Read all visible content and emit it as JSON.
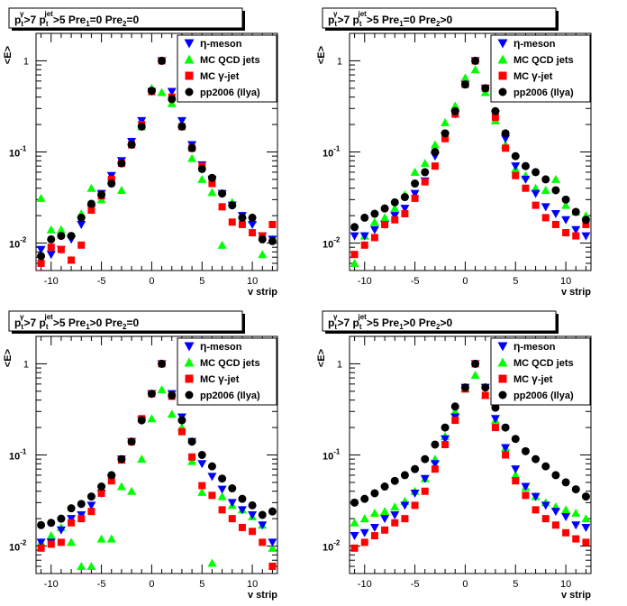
{
  "labels": {
    "eta_letter": "η",
    "gamma_letter": "γ",
    "exp_ten": "10",
    "exp_m1": "-1",
    "exp_m2": "-2",
    "one": "1"
  },
  "chart_data": [
    {
      "type": "scatter",
      "title_parts": {
        "p": "p",
        "sub_t": "t",
        "sup_gamma": "γ",
        "gt7": ">7",
        "p2": "p",
        "sub_t2": "t",
        "sup_jet": "jet",
        "gt5": ">5",
        "pre1": "Pre",
        "sub1": "1",
        "pre1_cond": "=0",
        "pre2": "Pre",
        "sub2": "2",
        "pre2_cond": "=0"
      },
      "xlabel": "v strip",
      "ylabel": "<E>",
      "xlim": [
        -11.5,
        12.5
      ],
      "ylim": [
        0.005,
        2
      ],
      "yscale": "log",
      "xticks": [
        -10,
        -5,
        0,
        5,
        10
      ],
      "legend_placement": "top-right",
      "series": [
        {
          "name": "η-meson",
          "marker": "triangle-down",
          "color": "#0000ff",
          "x": [
            -11,
            -10,
            -9,
            -8,
            -7,
            -6,
            -5,
            -4,
            -3,
            -2,
            -1,
            0,
            1,
            2,
            3,
            4,
            5,
            6,
            7,
            8,
            9,
            10,
            11,
            12
          ],
          "y": [
            0.0085,
            0.0075,
            0.0085,
            0.011,
            0.016,
            0.024,
            0.035,
            0.055,
            0.08,
            0.13,
            0.22,
            0.46,
            1.0,
            0.46,
            0.22,
            0.12,
            0.072,
            0.05,
            0.035,
            0.026,
            0.02,
            0.016,
            0.012,
            0.011
          ]
        },
        {
          "name": "MC QCD jets",
          "marker": "triangle-up",
          "color": "#00ff00",
          "x": [
            -11,
            -10,
            -9,
            -8,
            -7,
            -6,
            -5,
            -4,
            -3,
            -2,
            -1,
            0,
            1,
            2,
            3,
            4,
            5,
            6,
            7,
            8,
            9,
            10,
            11,
            12
          ],
          "y": [
            0.031,
            0.014,
            0.014,
            0.0065,
            0.021,
            0.04,
            0.03,
            0.054,
            0.038,
            0.13,
            0.19,
            0.5,
            0.45,
            0.34,
            0.2,
            0.085,
            0.05,
            0.036,
            0.0095,
            0.028,
            0.02,
            0.018,
            0.0075,
            0.011
          ]
        },
        {
          "name": "MC γ-jet",
          "marker": "square",
          "color": "#ff0000",
          "x": [
            -11,
            -10,
            -9,
            -8,
            -7,
            -6,
            -5,
            -4,
            -3,
            -2,
            -1,
            0,
            1,
            2,
            3,
            4,
            5,
            6,
            7,
            8,
            9,
            10,
            11,
            12
          ],
          "y": [
            0.006,
            0.009,
            0.0085,
            0.0065,
            0.0095,
            0.023,
            0.033,
            0.05,
            0.075,
            0.12,
            0.2,
            0.46,
            1.0,
            0.4,
            0.19,
            0.11,
            0.07,
            0.045,
            0.025,
            0.017,
            0.016,
            0.013,
            0.012,
            0.016
          ]
        },
        {
          "name": "pp2006 (Ilya)",
          "marker": "circle",
          "color": "#000000",
          "x": [
            -11,
            -10,
            -9,
            -8,
            -7,
            -6,
            -5,
            -4,
            -3,
            -2,
            -1,
            0,
            1,
            2,
            3,
            4,
            5,
            6,
            7,
            8,
            9,
            10,
            11,
            12
          ],
          "y": [
            0.0072,
            0.011,
            0.012,
            0.012,
            0.019,
            0.027,
            0.034,
            0.045,
            0.075,
            0.12,
            0.19,
            0.47,
            1.0,
            0.38,
            0.19,
            0.11,
            0.065,
            0.052,
            0.035,
            0.026,
            0.019,
            0.019,
            0.011,
            0.0105
          ]
        }
      ]
    },
    {
      "type": "scatter",
      "title_parts": {
        "p": "p",
        "sub_t": "t",
        "sup_gamma": "γ",
        "gt7": ">7",
        "p2": "p",
        "sub_t2": "t",
        "sup_jet": "jet",
        "gt5": ">5",
        "pre1": "Pre",
        "sub1": "1",
        "pre1_cond": "=0",
        "pre2": "Pre",
        "sub2": "2",
        "pre2_cond": ">0"
      },
      "xlabel": "v strip",
      "ylabel": "<E>",
      "xlim": [
        -11.5,
        12.5
      ],
      "ylim": [
        0.005,
        2
      ],
      "yscale": "log",
      "xticks": [
        -10,
        -5,
        0,
        5,
        10
      ],
      "legend_placement": "top-right",
      "series": [
        {
          "name": "η-meson",
          "marker": "triangle-down",
          "color": "#0000ff",
          "x": [
            -11,
            -10,
            -9,
            -8,
            -7,
            -6,
            -5,
            -4,
            -3,
            -2,
            -1,
            0,
            1,
            2,
            3,
            4,
            5,
            6,
            7,
            8,
            9,
            10,
            11,
            12
          ],
          "y": [
            0.012,
            0.012,
            0.014,
            0.016,
            0.02,
            0.024,
            0.035,
            0.048,
            0.09,
            0.15,
            0.26,
            0.55,
            1.0,
            0.5,
            0.26,
            0.14,
            0.07,
            0.05,
            0.035,
            0.025,
            0.021,
            0.018,
            0.014,
            0.012
          ]
        },
        {
          "name": "MC QCD jets",
          "marker": "triangle-up",
          "color": "#00ff00",
          "x": [
            -11,
            -10,
            -9,
            -8,
            -7,
            -6,
            -5,
            -4,
            -3,
            -2,
            -1,
            0,
            1,
            2,
            3,
            4,
            5,
            6,
            7,
            8,
            9,
            10,
            11,
            12
          ],
          "y": [
            0.006,
            0.012,
            0.017,
            0.019,
            0.024,
            0.034,
            0.06,
            0.075,
            0.12,
            0.21,
            0.32,
            0.65,
            0.8,
            0.45,
            0.22,
            0.12,
            0.065,
            0.055,
            0.04,
            0.038,
            0.05,
            0.026,
            0.022,
            0.02
          ]
        },
        {
          "name": "MC γ-jet",
          "marker": "square",
          "color": "#ff0000",
          "x": [
            -11,
            -10,
            -9,
            -8,
            -7,
            -6,
            -5,
            -4,
            -3,
            -2,
            -1,
            0,
            1,
            2,
            3,
            4,
            5,
            6,
            7,
            8,
            9,
            10,
            11,
            12
          ],
          "y": [
            0.0075,
            0.0095,
            0.0115,
            0.016,
            0.018,
            0.021,
            0.031,
            0.047,
            0.07,
            0.14,
            0.26,
            0.55,
            1.0,
            0.5,
            0.24,
            0.11,
            0.055,
            0.04,
            0.026,
            0.019,
            0.016,
            0.013,
            0.012,
            0.016
          ]
        },
        {
          "name": "pp2006 (Ilya)",
          "marker": "circle",
          "color": "#000000",
          "x": [
            -11,
            -10,
            -9,
            -8,
            -7,
            -6,
            -5,
            -4,
            -3,
            -2,
            -1,
            0,
            1,
            2,
            3,
            4,
            5,
            6,
            7,
            8,
            9,
            10,
            11,
            12
          ],
          "y": [
            0.015,
            0.019,
            0.021,
            0.024,
            0.028,
            0.032,
            0.045,
            0.06,
            0.1,
            0.16,
            0.28,
            0.55,
            1.0,
            0.5,
            0.28,
            0.16,
            0.09,
            0.07,
            0.06,
            0.05,
            0.038,
            0.03,
            0.022,
            0.018
          ]
        }
      ]
    },
    {
      "type": "scatter",
      "title_parts": {
        "p": "p",
        "sub_t": "t",
        "sup_gamma": "γ",
        "gt7": ">7",
        "p2": "p",
        "sub_t2": "t",
        "sup_jet": "jet",
        "gt5": ">5",
        "pre1": "Pre",
        "sub1": "1",
        "pre1_cond": ">0",
        "pre2": "Pre",
        "sub2": "2",
        "pre2_cond": "=0"
      },
      "xlabel": "v strip",
      "ylabel": "<E>",
      "xlim": [
        -11.5,
        12.5
      ],
      "ylim": [
        0.005,
        2
      ],
      "yscale": "log",
      "xticks": [
        -10,
        -5,
        0,
        5,
        10
      ],
      "legend_placement": "top-right",
      "series": [
        {
          "name": "η-meson",
          "marker": "triangle-down",
          "color": "#0000ff",
          "x": [
            -11,
            -10,
            -9,
            -8,
            -7,
            -6,
            -5,
            -4,
            -3,
            -2,
            -1,
            0,
            1,
            2,
            3,
            4,
            5,
            6,
            7,
            8,
            9,
            10,
            11,
            12
          ],
          "y": [
            0.011,
            0.011,
            0.015,
            0.02,
            0.022,
            0.028,
            0.038,
            0.055,
            0.09,
            0.14,
            0.24,
            0.47,
            1.0,
            0.47,
            0.26,
            0.14,
            0.08,
            0.058,
            0.042,
            0.03,
            0.025,
            0.022,
            0.017,
            0.011
          ]
        },
        {
          "name": "MC QCD jets",
          "marker": "triangle-up",
          "color": "#00ff00",
          "x": [
            -11,
            -10,
            -9,
            -8,
            -7,
            -6,
            -5,
            -4,
            -3,
            -2,
            -1,
            0,
            1,
            2,
            3,
            4,
            5,
            6,
            7,
            8,
            9,
            10,
            11,
            12
          ],
          "y": [
            0.011,
            0.013,
            0.016,
            0.011,
            0.006,
            0.006,
            0.012,
            0.012,
            0.045,
            0.04,
            0.09,
            0.25,
            0.52,
            0.28,
            0.2,
            0.085,
            0.039,
            0.0065,
            0.035,
            0.028,
            0.025,
            0.021,
            0.017,
            0.0095
          ]
        },
        {
          "name": "MC γ-jet",
          "marker": "square",
          "color": "#ff0000",
          "x": [
            -11,
            -10,
            -9,
            -8,
            -7,
            -6,
            -5,
            -4,
            -3,
            -2,
            -1,
            0,
            1,
            2,
            3,
            4,
            5,
            6,
            7,
            8,
            9,
            10,
            11,
            12
          ],
          "y": [
            0.0095,
            0.0105,
            0.011,
            0.018,
            0.02,
            0.024,
            0.038,
            0.052,
            0.088,
            0.14,
            0.25,
            0.47,
            1.0,
            0.44,
            0.18,
            0.095,
            0.046,
            0.036,
            0.025,
            0.02,
            0.016,
            0.0145,
            0.011,
            0.006
          ]
        },
        {
          "name": "pp2006 (Ilya)",
          "marker": "circle",
          "color": "#000000",
          "x": [
            -11,
            -10,
            -9,
            -8,
            -7,
            -6,
            -5,
            -4,
            -3,
            -2,
            -1,
            0,
            1,
            2,
            3,
            4,
            5,
            6,
            7,
            8,
            9,
            10,
            11,
            12
          ],
          "y": [
            0.017,
            0.018,
            0.02,
            0.026,
            0.029,
            0.035,
            0.045,
            0.06,
            0.09,
            0.14,
            0.24,
            0.47,
            1.0,
            0.45,
            0.24,
            0.14,
            0.1,
            0.075,
            0.055,
            0.043,
            0.033,
            0.028,
            0.022,
            0.024
          ]
        }
      ]
    },
    {
      "type": "scatter",
      "title_parts": {
        "p": "p",
        "sub_t": "t",
        "sup_gamma": "γ",
        "gt7": ">7",
        "p2": "p",
        "sub_t2": "t",
        "sup_jet": "jet",
        "gt5": ">5",
        "pre1": "Pre",
        "sub1": "1",
        "pre1_cond": ">0",
        "pre2": "Pre",
        "sub2": "2",
        "pre2_cond": ">0"
      },
      "xlabel": "v strip",
      "ylabel": "<E>",
      "xlim": [
        -11.5,
        12.5
      ],
      "ylim": [
        0.005,
        2
      ],
      "yscale": "log",
      "xticks": [
        -10,
        -5,
        0,
        5,
        10
      ],
      "legend_placement": "top-right",
      "series": [
        {
          "name": "η-meson",
          "marker": "triangle-down",
          "color": "#0000ff",
          "x": [
            -11,
            -10,
            -9,
            -8,
            -7,
            -6,
            -5,
            -4,
            -3,
            -2,
            -1,
            0,
            1,
            2,
            3,
            4,
            5,
            6,
            7,
            8,
            9,
            10,
            11,
            12
          ],
          "y": [
            0.013,
            0.014,
            0.016,
            0.02,
            0.022,
            0.028,
            0.038,
            0.055,
            0.08,
            0.15,
            0.26,
            0.55,
            1.0,
            0.55,
            0.25,
            0.12,
            0.07,
            0.045,
            0.035,
            0.028,
            0.024,
            0.021,
            0.017,
            0.016
          ]
        },
        {
          "name": "MC QCD jets",
          "marker": "triangle-up",
          "color": "#00ff00",
          "x": [
            -11,
            -10,
            -9,
            -8,
            -7,
            -6,
            -5,
            -4,
            -3,
            -2,
            -1,
            0,
            1,
            2,
            3,
            4,
            5,
            6,
            7,
            8,
            9,
            10,
            11,
            12
          ],
          "y": [
            0.018,
            0.02,
            0.023,
            0.024,
            0.027,
            0.031,
            0.04,
            0.055,
            0.09,
            0.16,
            0.3,
            0.53,
            0.75,
            0.45,
            0.24,
            0.12,
            0.06,
            0.044,
            0.035,
            0.03,
            0.027,
            0.025,
            0.023,
            0.02
          ]
        },
        {
          "name": "MC γ-jet",
          "marker": "square",
          "color": "#ff0000",
          "x": [
            -11,
            -10,
            -9,
            -8,
            -7,
            -6,
            -5,
            -4,
            -3,
            -2,
            -1,
            0,
            1,
            2,
            3,
            4,
            5,
            6,
            7,
            8,
            9,
            10,
            11,
            12
          ],
          "y": [
            0.0095,
            0.011,
            0.013,
            0.015,
            0.018,
            0.02,
            0.028,
            0.04,
            0.07,
            0.13,
            0.24,
            0.53,
            1.0,
            0.45,
            0.2,
            0.1,
            0.052,
            0.036,
            0.025,
            0.02,
            0.017,
            0.014,
            0.012,
            0.011
          ]
        },
        {
          "name": "pp2006 (Ilya)",
          "marker": "circle",
          "color": "#000000",
          "x": [
            -11,
            -10,
            -9,
            -8,
            -7,
            -6,
            -5,
            -4,
            -3,
            -2,
            -1,
            0,
            1,
            2,
            3,
            4,
            5,
            6,
            7,
            8,
            9,
            10,
            11,
            12
          ],
          "y": [
            0.03,
            0.033,
            0.038,
            0.045,
            0.052,
            0.06,
            0.07,
            0.09,
            0.13,
            0.2,
            0.34,
            0.55,
            1.0,
            0.55,
            0.33,
            0.2,
            0.15,
            0.11,
            0.09,
            0.075,
            0.06,
            0.05,
            0.042,
            0.035
          ]
        }
      ]
    }
  ]
}
